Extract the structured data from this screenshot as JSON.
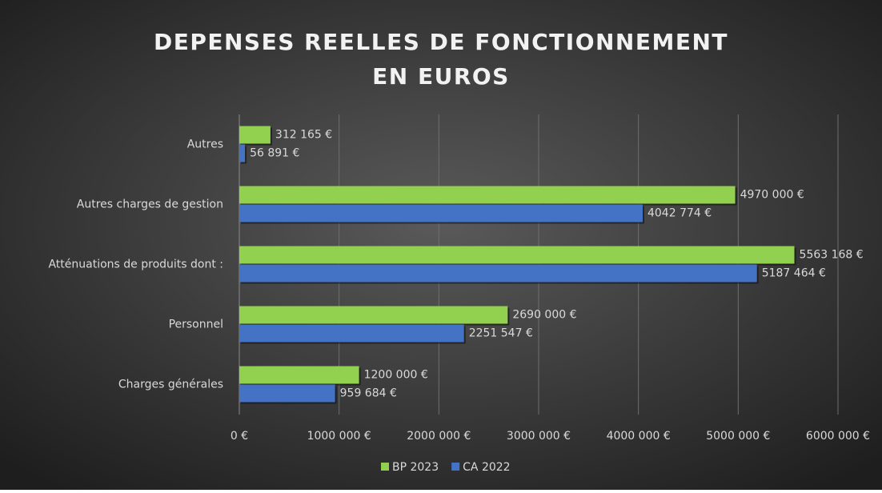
{
  "chart_data": {
    "type": "bar",
    "orientation": "horizontal",
    "title": [
      "DEPENSES REELLES DE FONCTIONNEMENT",
      "EN EUROS"
    ],
    "categories": [
      "Autres",
      "Autres charges de gestion",
      "Atténuations de produits dont :",
      "Personnel",
      "Charges générales"
    ],
    "series": [
      {
        "name": "BP 2023",
        "color": "#92d050",
        "values": [
          312165,
          4970000,
          5563168,
          2690000,
          1200000
        ],
        "value_labels": [
          "312 165 €",
          "4970 000 €",
          "5563 168 €",
          "2690 000 €",
          "1200 000 €"
        ]
      },
      {
        "name": "CA 2022",
        "color": "#4472c4",
        "values": [
          56891,
          4042774,
          5187464,
          2251547,
          959684
        ],
        "value_labels": [
          "56 891 €",
          "4042 774 €",
          "5187 464 €",
          "2251 547 €",
          "959 684 €"
        ]
      }
    ],
    "xlim": [
      0,
      6000000
    ],
    "xticks": [
      {
        "value": 0,
        "label": "0 €"
      },
      {
        "value": 1000000,
        "label": "1000 000 €"
      },
      {
        "value": 2000000,
        "label": "2000 000 €"
      },
      {
        "value": 3000000,
        "label": "3000 000 €"
      },
      {
        "value": 4000000,
        "label": "4000 000 €"
      },
      {
        "value": 5000000,
        "label": "5000 000 €"
      },
      {
        "value": 6000000,
        "label": "6000 000 €"
      }
    ],
    "grid": true,
    "legend": "bottom"
  }
}
